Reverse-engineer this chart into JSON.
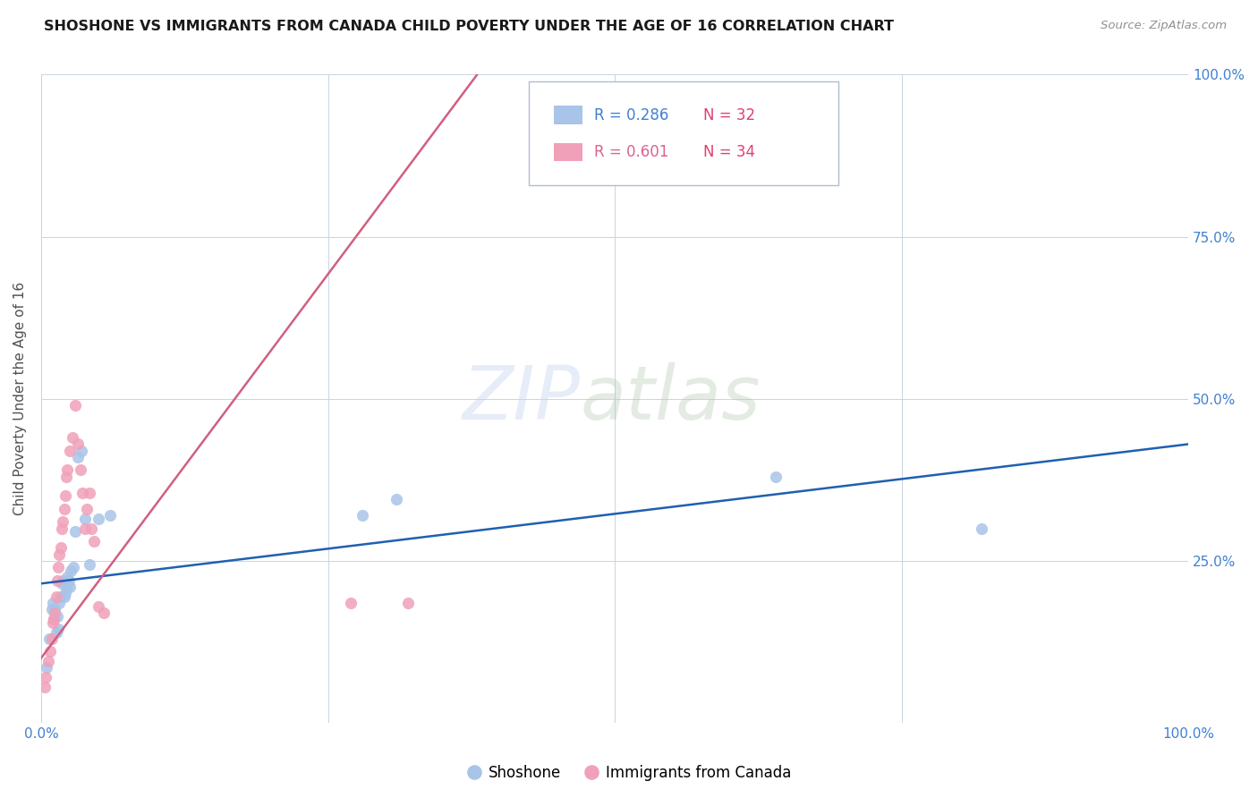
{
  "title": "SHOSHONE VS IMMIGRANTS FROM CANADA CHILD POVERTY UNDER THE AGE OF 16 CORRELATION CHART",
  "source": "Source: ZipAtlas.com",
  "ylabel": "Child Poverty Under the Age of 16",
  "xlim": [
    0,
    1.0
  ],
  "ylim": [
    0,
    1.0
  ],
  "legend_r1": "R = 0.286",
  "legend_n1": "N = 32",
  "legend_r2": "R = 0.601",
  "legend_n2": "N = 34",
  "legend_label1": "Shoshone",
  "legend_label2": "Immigrants from Canada",
  "color_blue": "#a8c4e8",
  "color_pink": "#f0a0b8",
  "color_blue_line": "#2060b0",
  "color_pink_line": "#d06080",
  "color_rn_blue": "#4080d0",
  "color_rn_pink": "#e06090",
  "color_rn_n": "#e04070",
  "watermark_zip": "ZIP",
  "watermark_atlas": "atlas",
  "shoshone_x": [
    0.005,
    0.007,
    0.009,
    0.01,
    0.011,
    0.012,
    0.013,
    0.014,
    0.015,
    0.016,
    0.017,
    0.018,
    0.019,
    0.02,
    0.021,
    0.022,
    0.023,
    0.024,
    0.025,
    0.026,
    0.028,
    0.03,
    0.032,
    0.035,
    0.038,
    0.042,
    0.05,
    0.06,
    0.28,
    0.31,
    0.64,
    0.82
  ],
  "shoshone_y": [
    0.085,
    0.13,
    0.175,
    0.185,
    0.16,
    0.175,
    0.14,
    0.165,
    0.145,
    0.185,
    0.195,
    0.215,
    0.22,
    0.195,
    0.2,
    0.21,
    0.225,
    0.22,
    0.21,
    0.235,
    0.24,
    0.295,
    0.41,
    0.42,
    0.315,
    0.245,
    0.315,
    0.32,
    0.32,
    0.345,
    0.38,
    0.3
  ],
  "canada_x": [
    0.003,
    0.004,
    0.006,
    0.008,
    0.009,
    0.01,
    0.011,
    0.012,
    0.013,
    0.014,
    0.015,
    0.016,
    0.017,
    0.018,
    0.019,
    0.02,
    0.021,
    0.022,
    0.023,
    0.025,
    0.027,
    0.03,
    0.032,
    0.034,
    0.036,
    0.038,
    0.04,
    0.042,
    0.044,
    0.046,
    0.05,
    0.055,
    0.27,
    0.32
  ],
  "canada_y": [
    0.055,
    0.07,
    0.095,
    0.11,
    0.13,
    0.155,
    0.16,
    0.17,
    0.195,
    0.22,
    0.24,
    0.26,
    0.27,
    0.3,
    0.31,
    0.33,
    0.35,
    0.38,
    0.39,
    0.42,
    0.44,
    0.49,
    0.43,
    0.39,
    0.355,
    0.3,
    0.33,
    0.355,
    0.3,
    0.28,
    0.18,
    0.17,
    0.185,
    0.185
  ],
  "blue_line_x": [
    0.0,
    1.0
  ],
  "blue_line_y": [
    0.215,
    0.43
  ],
  "pink_line_x": [
    0.0,
    0.38
  ],
  "pink_line_y": [
    0.1,
    1.0
  ]
}
